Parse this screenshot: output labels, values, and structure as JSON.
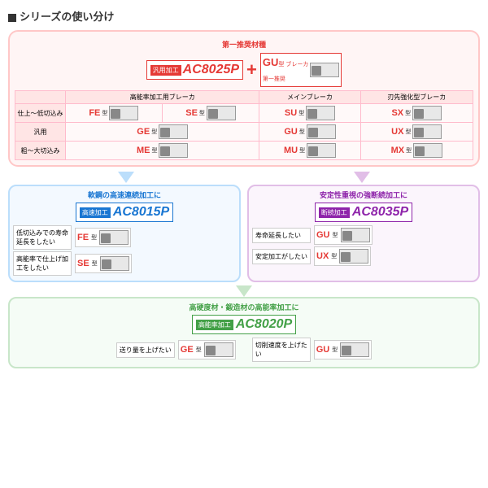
{
  "title": "シリーズの使い分け",
  "main": {
    "top_label": "第一推奨材種",
    "badge_left": "汎用加工",
    "code": "AC8025P",
    "gu_code": "GU",
    "gu_suffix": "型 ブレーカ",
    "gu_note": "第一推奨"
  },
  "columns": [
    "",
    "高能率加工用ブレーカ",
    "メインブレーカ",
    "刃先強化型ブレーカ"
  ],
  "rows": [
    {
      "label": "仕上～低切込み",
      "cells": [
        {
          "code": "FE",
          "dim": "1.40 0.70"
        },
        {
          "code": "SE",
          "dim": "0.1 1.5"
        },
        {
          "code": "SU",
          "dim": "0.15 1.3"
        },
        {
          "code": "SX",
          "dim": "0.2 1.35"
        }
      ]
    },
    {
      "label": "汎用",
      "cells": [
        {
          "code": "GE",
          "dim": "0.25 2.0"
        },
        null,
        {
          "code": "GU",
          "dim": "0.25 2.05"
        },
        {
          "code": "UX",
          "dim": "0.25 2.05"
        }
      ]
    },
    {
      "label": "粗～大切込み",
      "cells": [
        {
          "code": "ME",
          "dim": "0.3 2.4"
        },
        null,
        {
          "code": "MU",
          "dim": "0.25 2.0"
        },
        {
          "code": "MX",
          "dim": "0.4 2.0"
        }
      ]
    }
  ],
  "blue": {
    "title": "軟鋼の高速連続加工に",
    "badge": "高速加工",
    "code": "AC8015P",
    "recs": [
      {
        "label": "低切込みでの寿命延長をしたい",
        "code": "FE",
        "dim": "1.40 0.70"
      },
      {
        "label": "高能率で仕上げ加工をしたい",
        "code": "SE",
        "dim": "0.1 1.5"
      }
    ]
  },
  "purple": {
    "title": "安定性重視の強断続加工に",
    "badge": "断続加工",
    "code": "AC8035P",
    "recs": [
      {
        "label": "寿命延長したい",
        "code": "GU",
        "dim": "0.25 2.05"
      },
      {
        "label": "安定加工がしたい",
        "code": "UX",
        "dim": "0.25 2.05"
      }
    ]
  },
  "green": {
    "title": "高硬度材・鍛造材の高能率加工に",
    "badge": "高能率加工",
    "code": "AC8020P",
    "recs": [
      {
        "label": "送り量を上げたい",
        "code": "GE",
        "dim": "0.25 2.0"
      },
      {
        "label": "切削速度を上げたい",
        "code": "GU",
        "dim": "0.25 2.05"
      }
    ]
  },
  "suffix": "型"
}
